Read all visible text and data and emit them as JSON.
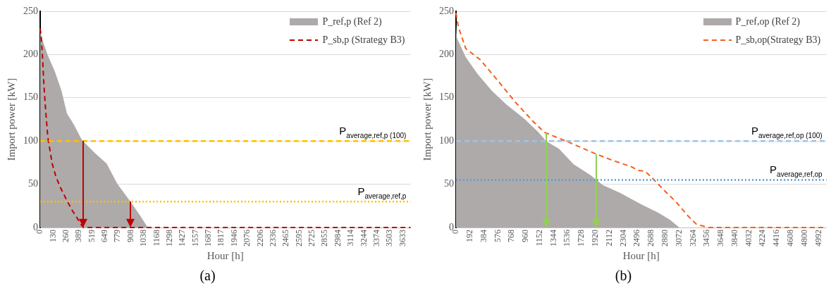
{
  "chart_data": [
    {
      "type": "area",
      "xlabel": "Hour [h]",
      "ylabel": "Import power [kW]",
      "xlim": [
        0,
        3710
      ],
      "xticks": [
        0,
        130,
        260,
        389,
        519,
        649,
        779,
        908,
        1038,
        1168,
        1298,
        1427,
        1557,
        1687,
        1817,
        1946,
        2076,
        2206,
        2336,
        2465,
        2595,
        2725,
        2855,
        2984,
        3114,
        3244,
        3374,
        3503,
        3633
      ],
      "ylim": [
        0,
        250
      ],
      "yticks": [
        0,
        50,
        100,
        150,
        200,
        250
      ],
      "grid": "y",
      "legend": "top right",
      "annotations": [
        "(a)"
      ],
      "series": [
        {
          "name": "P_ref,p (Ref 2)",
          "type": "area",
          "color": "#aeaaaa",
          "x": [
            0,
            22,
            77,
            145,
            214,
            268,
            337,
            419,
            455,
            550,
            666,
            775,
            898,
            1000,
            1077
          ],
          "values": [
            228,
            217,
            199,
            181,
            158,
            132,
            119,
            101,
            97,
            86,
            74,
            50,
            31,
            14,
            0
          ]
        },
        {
          "name": "P_sb,p (Strategy B3)",
          "type": "line",
          "line_style": "dashed",
          "color": "#c00000",
          "x": [
            0,
            10,
            22,
            36,
            55,
            77,
            100,
            120,
            155,
            195,
            230,
            269,
            320,
            365,
            400,
            433,
            3710
          ],
          "values": [
            230,
            220,
            200,
            168,
            135,
            104,
            88,
            74,
            60,
            48,
            40,
            31,
            20,
            12,
            5,
            0,
            0
          ]
        }
      ],
      "ref_lines": [
        {
          "axis": "y",
          "value": 100,
          "label": "P$_{average,ref,p (100)}$",
          "color": "#ffc000",
          "line_style": "dashed"
        },
        {
          "axis": "y",
          "value": 30,
          "label": "P$_{average,ref,p}$",
          "color": "#ffc000",
          "line_style": "dotted"
        }
      ]
    },
    {
      "type": "area",
      "xlabel": "Hour [h]",
      "ylabel": "Import power [kW]",
      "xlim": [
        0,
        5100
      ],
      "xticks": [
        0,
        192,
        384,
        576,
        768,
        960,
        1152,
        1344,
        1536,
        1728,
        1920,
        2112,
        2304,
        2496,
        2688,
        2880,
        3072,
        3264,
        3456,
        3648,
        3840,
        4032,
        4224,
        4416,
        4608,
        4800,
        4992
      ],
      "ylim": [
        0,
        250
      ],
      "yticks": [
        0,
        50,
        100,
        150,
        200,
        250
      ],
      "grid": "y",
      "legend": "top right",
      "annotations": [
        "(b)"
      ],
      "series": [
        {
          "name": "P_ref,op (Ref 2)",
          "type": "area",
          "color": "#aeaaaa",
          "x": [
            0,
            12,
            133,
            293,
            494,
            695,
            936,
            1137,
            1238,
            1418,
            1619,
            1860,
            2021,
            2262,
            2543,
            2784,
            2945,
            3074
          ],
          "values": [
            235,
            219,
            197,
            178,
            158,
            142,
            126,
            110,
            100,
            91,
            73,
            60,
            49,
            40,
            27,
            17,
            9,
            0
          ]
        },
        {
          "name": "P_sb,op(Strategy B3)",
          "type": "line",
          "line_style": "dashed",
          "color": "#f4601d",
          "x": [
            0,
            32,
            133,
            333,
            534,
            816,
            1057,
            1217,
            1539,
            1900,
            2142,
            2423,
            2503,
            2604,
            2704,
            2865,
            3025,
            3186,
            3307,
            3468,
            5100
          ],
          "values": [
            248,
            232,
            207,
            194,
            174,
            145,
            123,
            110,
            99,
            86,
            78,
            70,
            66,
            65,
            57,
            43,
            30,
            14,
            4,
            0,
            0
          ]
        }
      ],
      "ref_lines": [
        {
          "axis": "y",
          "value": 100,
          "label": "P$_{average,ref,op (100)}$",
          "color": "#9dc3e6",
          "line_style": "dashed"
        },
        {
          "axis": "y",
          "value": 55,
          "label": "P$_{average,ref,op}$",
          "color": "#5b9bd5",
          "line_style": "dotted"
        }
      ]
    }
  ]
}
